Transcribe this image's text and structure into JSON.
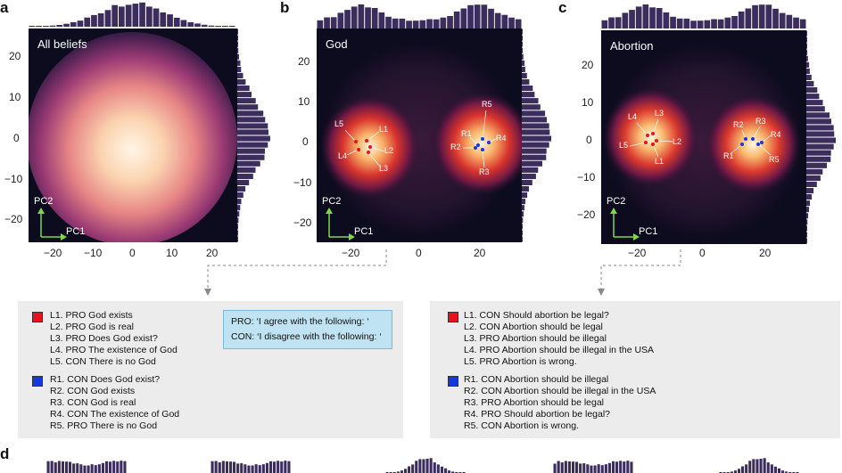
{
  "panels": {
    "a": {
      "letter": "a",
      "title": "All beliefs"
    },
    "b": {
      "letter": "b",
      "title": "God"
    },
    "c": {
      "letter": "c",
      "title": "Abortion"
    },
    "d": {
      "letter": "d"
    }
  },
  "axes": {
    "pc1": "PC1",
    "pc2": "PC2"
  },
  "ticks": {
    "a_y": [
      "20",
      "10",
      "0",
      "−10",
      "−20"
    ],
    "a_x": [
      "−20",
      "−10",
      "0",
      "10",
      "20"
    ],
    "b_y": [
      "20",
      "10",
      "0",
      "−10",
      "−20"
    ],
    "b_x": [
      "−20",
      "0",
      "20"
    ],
    "c_y": [
      "20",
      "10",
      "0",
      "−10",
      "−20"
    ],
    "c_x": [
      "−20",
      "0",
      "20"
    ]
  },
  "point_labels": {
    "b": [
      "L5",
      "L1",
      "L2",
      "L4",
      "L3",
      "R5",
      "R1",
      "R4",
      "R2",
      "R3"
    ],
    "c": [
      "L4",
      "L3",
      "L5",
      "L2",
      "L1",
      "R2",
      "R3",
      "R4",
      "R1",
      "R5"
    ]
  },
  "legend_god": {
    "left": [
      "L1. PRO  God exists",
      "L2. PRO  God is real",
      "L3. PRO  Does God exist?",
      "L4. PRO  The existence of God",
      "L5. CON  There is no God"
    ],
    "right": [
      "R1. CON  Does God exist?",
      "R2. CON  God exists",
      "R3. CON  God is real",
      "R4. CON  The existence of God",
      "R5. PRO  There is no God"
    ]
  },
  "legend_abortion": {
    "left": [
      "L1. CON  Should abortion be legal?",
      "L2. CON  Abortion should be legal",
      "L3. PRO  Abortion should be illegal",
      "L4. PRO  Abortion should be illegal in the USA",
      "L5. PRO  Abortion is wrong."
    ],
    "right": [
      "R1. CON  Abortion should be illegal",
      "R2. CON  Abortion should be illegal in the USA",
      "R3. PRO  Abortion should be legal",
      "R4. PRO  Should abortion be legal?",
      "R5. CON  Abortion is wrong."
    ]
  },
  "pro_con": {
    "pro": "PRO: ‘I agree with the following: ‘",
    "con": "CON: ‘I disagree with the following: ‘"
  },
  "colors": {
    "left_group": "#e8121a",
    "right_group": "#1238e0",
    "hist_bar": "#3b2d5c",
    "plot_bg": "#0d0b1e",
    "axis_arrow": "#7fd84a"
  }
}
